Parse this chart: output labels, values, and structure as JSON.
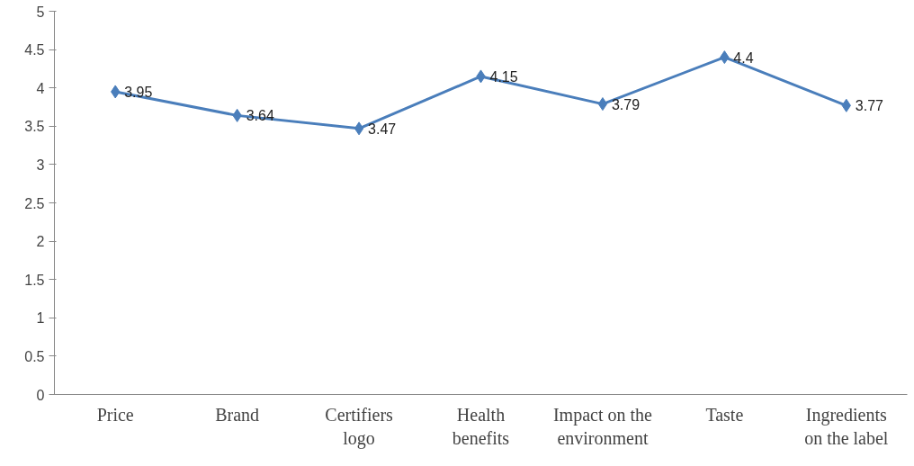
{
  "chart_data": {
    "type": "line",
    "categories": [
      "Price",
      "Brand",
      "Certifiers logo",
      "Health benefits",
      "Impact on the environment",
      "Taste",
      "Ingredients on the label"
    ],
    "values": [
      3.95,
      3.64,
      3.47,
      4.15,
      3.79,
      4.4,
      3.77
    ],
    "color": "#4a7ebb",
    "marker": "diamond",
    "line_style": "solid",
    "data_labels": true,
    "ylim": [
      0,
      5
    ],
    "yticks": [
      0,
      0.5,
      1,
      1.5,
      2,
      2.5,
      3,
      3.5,
      4,
      4.5,
      5
    ],
    "grid": false
  }
}
